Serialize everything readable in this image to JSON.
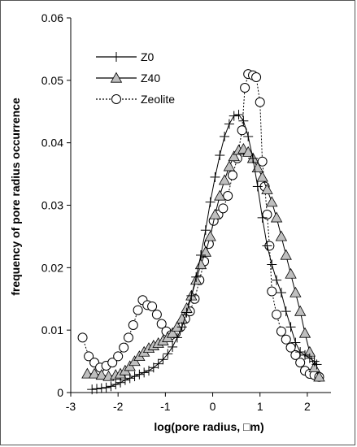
{
  "chart_data": {
    "type": "line",
    "title": "",
    "xlabel": "log(pore radius, □m)",
    "ylabel": "frequency of pore radius occurrence",
    "xlim": [
      -3,
      2.5
    ],
    "ylim": [
      0,
      0.06
    ],
    "x_ticks": [
      "-3",
      "-2",
      "-1",
      "0",
      "1",
      "2"
    ],
    "y_ticks": [
      "0",
      "0.01",
      "0.02",
      "0.03",
      "0.04",
      "0.05",
      "0.06"
    ],
    "grid": false,
    "legend_position": "top-left",
    "series": [
      {
        "name": "Z0",
        "marker": "plus",
        "line": "solid",
        "points": [
          [
            -2.55,
            0.0005
          ],
          [
            -2.45,
            0.0006
          ],
          [
            -2.35,
            0.0007
          ],
          [
            -2.25,
            0.0008
          ],
          [
            -2.15,
            0.001
          ],
          [
            -2.05,
            0.0013
          ],
          [
            -1.95,
            0.0016
          ],
          [
            -1.85,
            0.002
          ],
          [
            -1.75,
            0.0023
          ],
          [
            -1.65,
            0.0026
          ],
          [
            -1.55,
            0.0029
          ],
          [
            -1.45,
            0.0032
          ],
          [
            -1.35,
            0.0035
          ],
          [
            -1.25,
            0.004
          ],
          [
            -1.15,
            0.0046
          ],
          [
            -1.05,
            0.0053
          ],
          [
            -0.95,
            0.0062
          ],
          [
            -0.85,
            0.0073
          ],
          [
            -0.75,
            0.0088
          ],
          [
            -0.65,
            0.0105
          ],
          [
            -0.55,
            0.0128
          ],
          [
            -0.45,
            0.0155
          ],
          [
            -0.35,
            0.0185
          ],
          [
            -0.25,
            0.022
          ],
          [
            -0.15,
            0.026
          ],
          [
            -0.05,
            0.0305
          ],
          [
            0.05,
            0.0345
          ],
          [
            0.15,
            0.038
          ],
          [
            0.25,
            0.041
          ],
          [
            0.35,
            0.043
          ],
          [
            0.45,
            0.0443
          ],
          [
            0.55,
            0.0445
          ],
          [
            0.65,
            0.0435
          ],
          [
            0.75,
            0.041
          ],
          [
            0.85,
            0.0375
          ],
          [
            0.95,
            0.033
          ],
          [
            1.05,
            0.028
          ],
          [
            1.15,
            0.0235
          ],
          [
            1.25,
            0.0205
          ],
          [
            1.35,
            0.018
          ],
          [
            1.45,
            0.016
          ],
          [
            1.55,
            0.013
          ],
          [
            1.65,
            0.0105
          ],
          [
            1.75,
            0.008
          ],
          [
            1.85,
            0.0065
          ],
          [
            1.95,
            0.006
          ],
          [
            2.05,
            0.0055
          ],
          [
            2.15,
            0.005
          ],
          [
            2.2,
            0.0045
          ]
        ]
      },
      {
        "name": "Z40",
        "marker": "triangle",
        "line": "solid",
        "points": [
          [
            -2.65,
            0.003
          ],
          [
            -2.5,
            0.003
          ],
          [
            -2.35,
            0.0028
          ],
          [
            -2.2,
            0.0026
          ],
          [
            -2.05,
            0.0028
          ],
          [
            -1.95,
            0.003
          ],
          [
            -1.85,
            0.0035
          ],
          [
            -1.75,
            0.0042
          ],
          [
            -1.65,
            0.005
          ],
          [
            -1.55,
            0.0058
          ],
          [
            -1.45,
            0.0065
          ],
          [
            -1.35,
            0.0071
          ],
          [
            -1.25,
            0.0075
          ],
          [
            -1.15,
            0.0079
          ],
          [
            -1.05,
            0.0083
          ],
          [
            -0.95,
            0.0088
          ],
          [
            -0.85,
            0.0095
          ],
          [
            -0.75,
            0.0105
          ],
          [
            -0.65,
            0.0118
          ],
          [
            -0.55,
            0.0135
          ],
          [
            -0.45,
            0.0155
          ],
          [
            -0.35,
            0.018
          ],
          [
            -0.25,
            0.0205
          ],
          [
            -0.15,
            0.0225
          ],
          [
            -0.05,
            0.025
          ],
          [
            0.05,
            0.0285
          ],
          [
            0.15,
            0.0315
          ],
          [
            0.25,
            0.034
          ],
          [
            0.35,
            0.0362
          ],
          [
            0.45,
            0.0378
          ],
          [
            0.55,
            0.0388
          ],
          [
            0.65,
            0.039
          ],
          [
            0.75,
            0.0385
          ],
          [
            0.85,
            0.0375
          ],
          [
            0.95,
            0.036
          ],
          [
            1.05,
            0.0345
          ],
          [
            1.15,
            0.0325
          ],
          [
            1.25,
            0.0305
          ],
          [
            1.35,
            0.028
          ],
          [
            1.45,
            0.025
          ],
          [
            1.55,
            0.022
          ],
          [
            1.65,
            0.019
          ],
          [
            1.75,
            0.016
          ],
          [
            1.85,
            0.013
          ],
          [
            1.95,
            0.0095
          ],
          [
            2.05,
            0.0065
          ],
          [
            2.15,
            0.004
          ],
          [
            2.25,
            0.0025
          ]
        ]
      },
      {
        "name": "Zeolite",
        "marker": "circle",
        "line": "dotted",
        "points": [
          [
            -2.75,
            0.0088
          ],
          [
            -2.62,
            0.0058
          ],
          [
            -2.5,
            0.0048
          ],
          [
            -2.38,
            0.004
          ],
          [
            -2.25,
            0.0043
          ],
          [
            -2.12,
            0.0048
          ],
          [
            -2.0,
            0.0058
          ],
          [
            -1.88,
            0.0072
          ],
          [
            -1.78,
            0.0088
          ],
          [
            -1.68,
            0.0108
          ],
          [
            -1.58,
            0.0132
          ],
          [
            -1.48,
            0.0148
          ],
          [
            -1.38,
            0.014
          ],
          [
            -1.28,
            0.0138
          ],
          [
            -1.18,
            0.0125
          ],
          [
            -1.08,
            0.011
          ],
          [
            -0.98,
            0.0098
          ],
          [
            -0.88,
            0.0092
          ],
          [
            -0.78,
            0.0095
          ],
          [
            -0.68,
            0.0105
          ],
          [
            -0.58,
            0.0118
          ],
          [
            -0.48,
            0.013
          ],
          [
            -0.38,
            0.015
          ],
          [
            -0.28,
            0.018
          ],
          [
            -0.18,
            0.021
          ],
          [
            -0.08,
            0.0238
          ],
          [
            0.02,
            0.0275
          ],
          [
            0.12,
            0.0285
          ],
          [
            0.22,
            0.0295
          ],
          [
            0.32,
            0.0315
          ],
          [
            0.42,
            0.0348
          ],
          [
            0.52,
            0.0375
          ],
          [
            0.62,
            0.042
          ],
          [
            0.68,
            0.0488
          ],
          [
            0.75,
            0.051
          ],
          [
            0.85,
            0.0508
          ],
          [
            0.92,
            0.0505
          ],
          [
            1.0,
            0.0465
          ],
          [
            1.05,
            0.037
          ],
          [
            1.1,
            0.033
          ],
          [
            1.15,
            0.0285
          ],
          [
            1.2,
            0.0235
          ],
          [
            1.25,
            0.0162
          ],
          [
            1.35,
            0.0125
          ],
          [
            1.45,
            0.0098
          ],
          [
            1.55,
            0.0085
          ],
          [
            1.65,
            0.0072
          ],
          [
            1.75,
            0.006
          ],
          [
            1.85,
            0.0048
          ],
          [
            1.95,
            0.0035
          ],
          [
            2.05,
            0.003
          ],
          [
            2.15,
            0.0028
          ],
          [
            2.25,
            0.0025
          ]
        ]
      }
    ]
  }
}
